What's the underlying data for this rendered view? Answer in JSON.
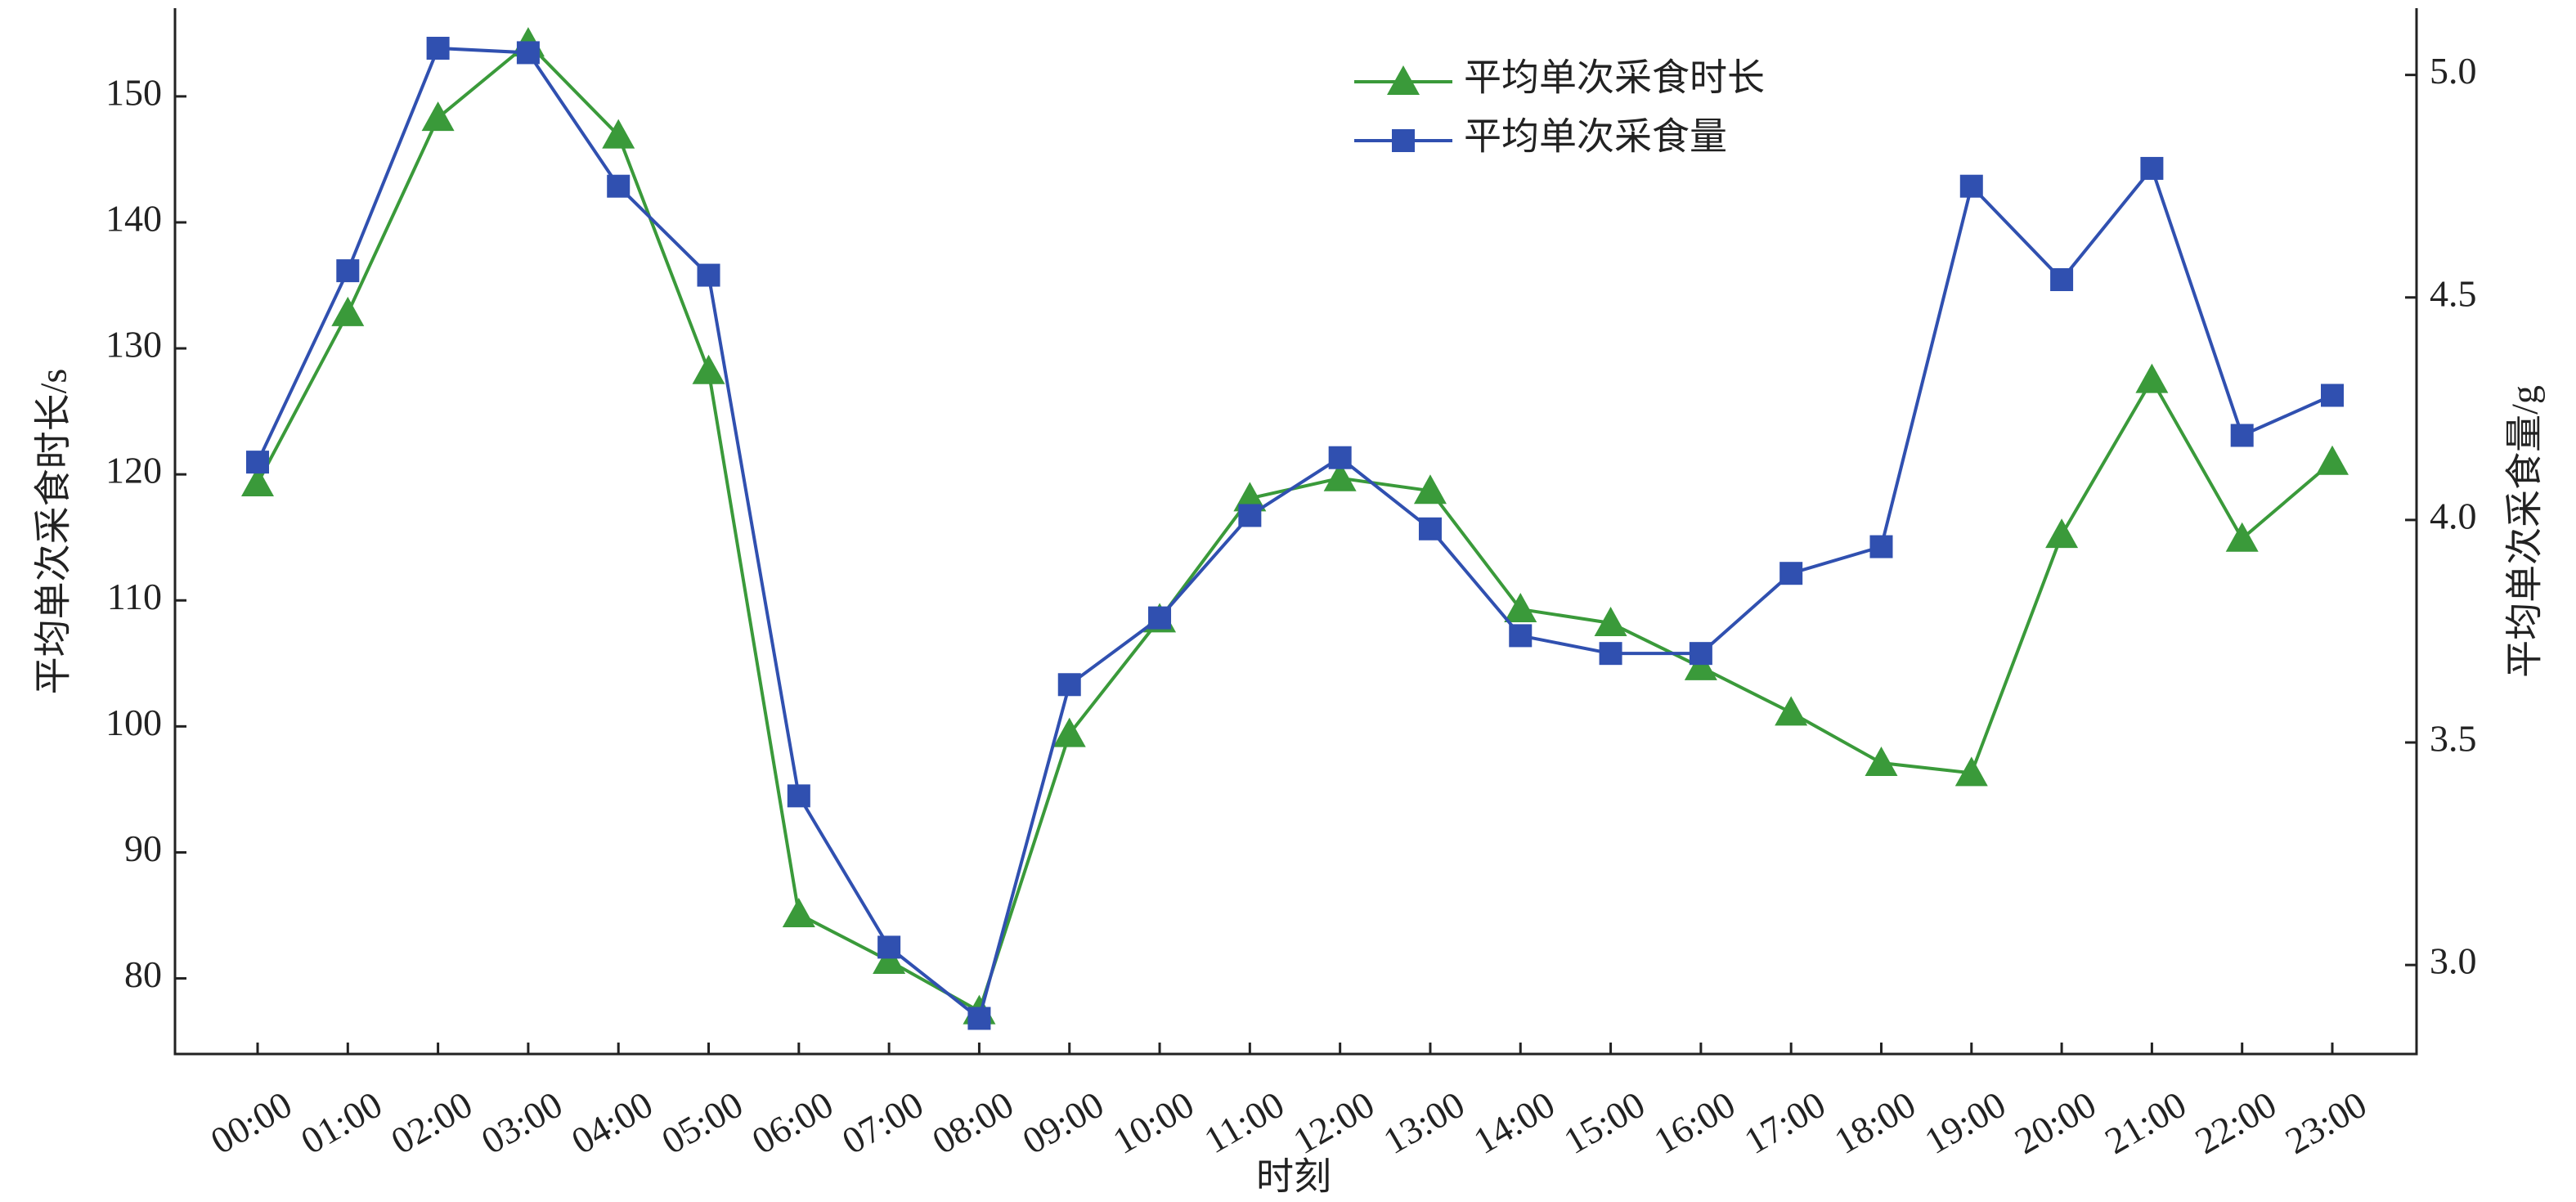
{
  "chart_data": {
    "type": "line",
    "x_label": "时刻",
    "y_label": "平均单次采食时长/s",
    "y2_label": "平均单次采食量/g",
    "categories": [
      "00:00",
      "01:00",
      "02:00",
      "03:00",
      "04:00",
      "05:00",
      "06:00",
      "07:00",
      "08:00",
      "09:00",
      "10:00",
      "11:00",
      "12:00",
      "13:00",
      "14:00",
      "15:00",
      "16:00",
      "17:00",
      "18:00",
      "19:00",
      "20:00",
      "21:00",
      "22:00",
      "23:00"
    ],
    "series": [
      {
        "name": "平均单次采食时长",
        "color": "#3a9a3a",
        "marker": "triangle",
        "values": [
          119.3,
          132.8,
          148.3,
          154.2,
          146.9,
          128.2,
          85.1,
          81.4,
          77.4,
          99.4,
          108.5,
          118.1,
          119.7,
          118.7,
          109.3,
          108.2,
          104.7,
          101.1,
          97.1,
          96.3,
          115.2,
          127.5,
          114.9,
          121.0
        ]
      },
      {
        "name": "平均单次采食量",
        "color": "#3050b0",
        "marker": "square",
        "axis": "y2",
        "values": [
          4.13,
          4.56,
          5.06,
          5.05,
          4.75,
          4.55,
          3.38,
          3.04,
          2.88,
          3.63,
          3.78,
          4.01,
          4.14,
          3.98,
          3.74,
          3.7,
          3.7,
          3.88,
          3.94,
          4.75,
          4.54,
          4.79,
          4.19,
          4.28
        ]
      }
    ],
    "ylim": [
      74,
      157
    ],
    "yticks": [
      80,
      90,
      100,
      110,
      120,
      130,
      140,
      150
    ],
    "y2lim": [
      2.8,
      5.15
    ],
    "y2ticks": [
      {
        "value": 3.0,
        "label": "3.0"
      },
      3.5,
      {
        "value": 4.0,
        "label": "4.0"
      },
      4.5,
      {
        "value": 5.0,
        "label": "5.0"
      }
    ],
    "grid": false,
    "legend": "top"
  }
}
